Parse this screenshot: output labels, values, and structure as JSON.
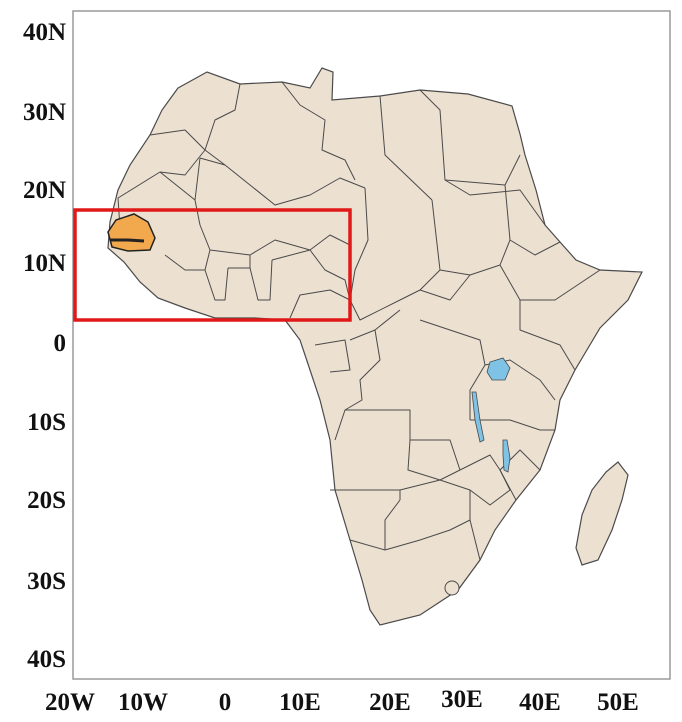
{
  "map": {
    "lat_labels": [
      "40N",
      "30N",
      "20N",
      "10N",
      "0",
      "10S",
      "20S",
      "30S",
      "40S"
    ],
    "lon_labels": [
      "20W",
      "10W",
      "0",
      "10E",
      "20E",
      "30E",
      "40E",
      "50E"
    ],
    "highlighted_country": "Senegal",
    "region_box": {
      "lon_range": [
        "20W",
        "15E"
      ],
      "lat_range": [
        "4N",
        "17N"
      ]
    },
    "colors": {
      "land": "#ece0d1",
      "border": "#4a4a4a",
      "highlight": "#f2a94e",
      "water": "#7ec3e6",
      "region_box": "#e01818",
      "frame": "#9a9a9a"
    }
  }
}
